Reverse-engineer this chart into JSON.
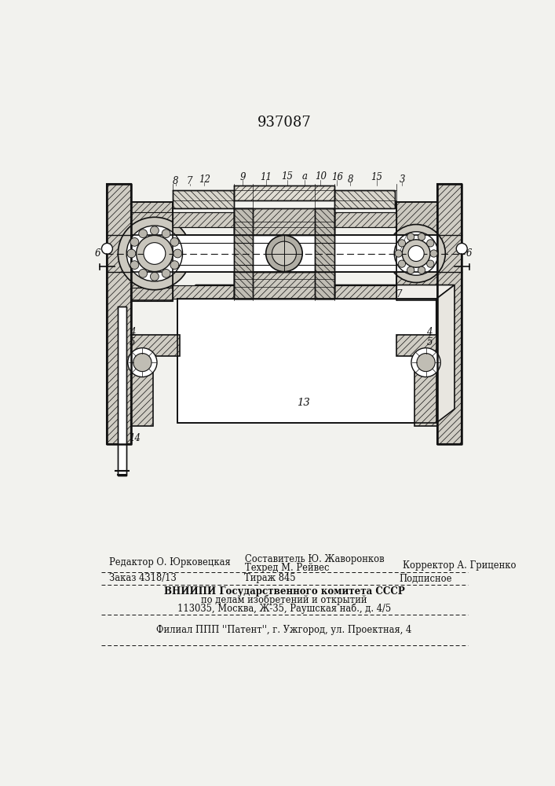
{
  "patent_number": "937087",
  "bg": "#f2f2ee",
  "lc": "#111111",
  "footer": {
    "l1_left": "Редактор О. Юрковецкая",
    "l1_c1": "Составитель Ю. Жаворонков",
    "l1_c2": "Техред М. Рейвес",
    "l1_right": "Корректор А. Гриценко",
    "l2_left": "Заказ 4318/13",
    "l2_c": "Тираж 845",
    "l2_right": "Подписное",
    "l3": "ВНИИПИ Государственного комитета СССР",
    "l4": "по делам изобретений и открытий",
    "l5": "113035, Москва, Ж-35, Раушская наб., д. 4/5",
    "l6": "Филиал ППП ''Патент'', г. Ужгород, ул. Проектная, 4"
  }
}
